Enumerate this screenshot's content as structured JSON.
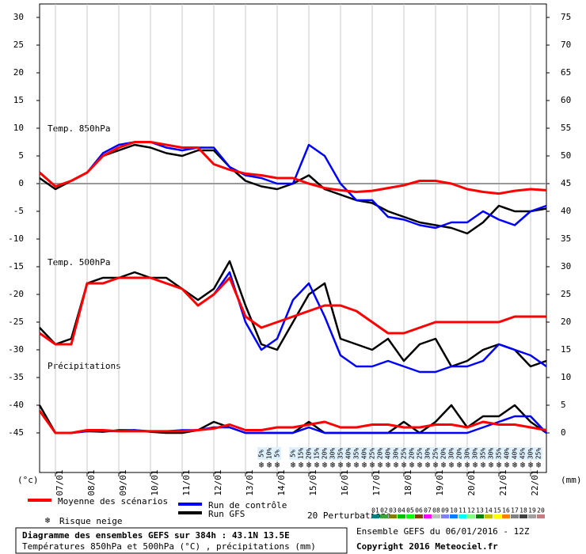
{
  "chart_data": {
    "type": "line",
    "title": "Diagramme des ensembles GEFS sur 384h : 43.1N 13.5E",
    "subtitle": "Températures 850hPa et 500hPa (°C) , précipitations (mm)",
    "run_info": "Ensemble GEFS du 06/01/2016 - 12Z",
    "copyright": "Copyright 2016 Meteociel.fr",
    "y_label": "(°c)",
    "y2_label": "(mm)",
    "panel_labels": [
      "Temp. 850hPa",
      "Temp. 500hPa",
      "Précipitations"
    ],
    "ylim": [
      -45,
      30
    ],
    "yticks": [
      30,
      25,
      20,
      15,
      10,
      5,
      0,
      -5,
      -10,
      -15,
      -20,
      -25,
      -30,
      -35,
      -40,
      -45
    ],
    "y2lim": [
      0,
      75
    ],
    "y2ticks": [
      75,
      70,
      65,
      60,
      55,
      50,
      45,
      40,
      35,
      30,
      25,
      20,
      15,
      10,
      5,
      0
    ],
    "xlim": [
      0,
      384
    ],
    "xticks": [
      {
        "value": 12,
        "label": "07/01"
      },
      {
        "value": 36,
        "label": "08/01"
      },
      {
        "value": 60,
        "label": "09/01"
      },
      {
        "value": 84,
        "label": "10/01"
      },
      {
        "value": 108,
        "label": "11/01"
      },
      {
        "value": 132,
        "label": "12/01"
      },
      {
        "value": 156,
        "label": "13/01"
      },
      {
        "value": 180,
        "label": "14/01"
      },
      {
        "value": 204,
        "label": "15/01"
      },
      {
        "value": 228,
        "label": "16/01"
      },
      {
        "value": 252,
        "label": "17/01"
      },
      {
        "value": 276,
        "label": "18/01"
      },
      {
        "value": 300,
        "label": "19/01"
      },
      {
        "value": 324,
        "label": "20/01"
      },
      {
        "value": 348,
        "label": "21/01"
      },
      {
        "value": 372,
        "label": "22/01"
      }
    ],
    "grid": true,
    "x": [
      0,
      12,
      24,
      36,
      48,
      60,
      72,
      84,
      96,
      108,
      120,
      132,
      144,
      156,
      168,
      180,
      192,
      204,
      216,
      228,
      240,
      252,
      264,
      276,
      288,
      300,
      312,
      324,
      336,
      348,
      360,
      372,
      384
    ],
    "series": [
      {
        "name": "Moyenne des scénarios",
        "color": "#ff0000",
        "t850": [
          2,
          -0.5,
          0.5,
          2,
          5,
          6.5,
          7.5,
          7.5,
          7,
          6.5,
          6.5,
          3.5,
          2.5,
          1.8,
          1.5,
          1,
          1,
          0,
          -0.8,
          -1.2,
          -1.5,
          -1.3,
          -0.8,
          -0.3,
          0.5,
          0.5,
          0,
          -1,
          -1.5,
          -1.8,
          -1.3,
          -1,
          -1.2
        ],
        "t500": [
          -27,
          -29,
          -29,
          -18,
          -18,
          -17,
          -17,
          -17,
          -18,
          -19,
          -22,
          -20,
          -17,
          -24,
          -26,
          -25,
          -24,
          -23,
          -22,
          -22,
          -23,
          -25,
          -27,
          -27,
          -26,
          -25,
          -25,
          -25,
          -25,
          -25,
          -24,
          -24,
          -24
        ],
        "precip": [
          4,
          0,
          0,
          0.5,
          0.5,
          0.3,
          0.3,
          0.3,
          0.3,
          0.3,
          0.5,
          0.8,
          1.5,
          0.5,
          0.5,
          1,
          1,
          1.5,
          2,
          1,
          1,
          1.5,
          1.5,
          1,
          1,
          1.5,
          1.5,
          1,
          2,
          1.5,
          1.5,
          1,
          0.5
        ]
      },
      {
        "name": "Run de contrôle",
        "color": "#0000ff",
        "t850": [
          2,
          -0.5,
          0.5,
          2,
          5.5,
          7,
          7.5,
          7.5,
          6.5,
          6,
          6.5,
          6.5,
          3,
          1.5,
          1,
          0,
          0,
          7,
          5,
          0,
          -3,
          -3,
          -6,
          -6.5,
          -7.5,
          -8,
          -7,
          -7,
          -5,
          -6.5,
          -7.5,
          -5,
          -4
        ],
        "t500": [
          -27,
          -29,
          -29,
          -18,
          -18,
          -17,
          -17,
          -17,
          -18,
          -19,
          -22,
          -20,
          -16,
          -25,
          -30,
          -28,
          -21,
          -18,
          -24,
          -31,
          -33,
          -33,
          -32,
          -33,
          -34,
          -34,
          -33,
          -33,
          -32,
          -29,
          -30,
          -31,
          -33
        ],
        "precip": [
          4,
          0,
          0,
          0.3,
          0.3,
          0.3,
          0.5,
          0.3,
          0.3,
          0.5,
          0.5,
          1,
          1,
          0,
          0,
          0,
          0,
          1,
          0,
          0,
          0,
          0,
          0,
          0,
          0,
          0,
          0,
          0,
          1,
          2,
          3,
          3,
          0
        ]
      },
      {
        "name": "Run GFS",
        "color": "#000000",
        "t850": [
          1,
          -1,
          0.5,
          2,
          5,
          6,
          7,
          6.5,
          5.5,
          5,
          6,
          6,
          3,
          0.5,
          -0.5,
          -1,
          0,
          1.5,
          -1,
          -2,
          -3,
          -3.5,
          -5,
          -6,
          -7,
          -7.5,
          -8,
          -9,
          -7,
          -4,
          -5,
          -5,
          -4.5
        ],
        "t500": [
          -26,
          -29,
          -28,
          -18,
          -17,
          -17,
          -16,
          -17,
          -17,
          -19,
          -21,
          -19,
          -14,
          -22,
          -29,
          -30,
          -25,
          -20,
          -18,
          -28,
          -29,
          -30,
          -28,
          -32,
          -29,
          -28,
          -33,
          -32,
          -30,
          -29,
          -30,
          -33,
          -32
        ],
        "precip": [
          5,
          0,
          0,
          0.3,
          0.2,
          0.5,
          0.5,
          0.2,
          0,
          0,
          0.5,
          2,
          1,
          0,
          0,
          0,
          0,
          2,
          0,
          0,
          0,
          0,
          0,
          2,
          0,
          2,
          5,
          1,
          3,
          3,
          5,
          2,
          0
        ]
      }
    ],
    "snow_risk": {
      "name": "Risque neige",
      "color": "#66bbee",
      "x": [
        168,
        174,
        180,
        192,
        198,
        204,
        210,
        216,
        222,
        228,
        234,
        240,
        246,
        252,
        258,
        264,
        270,
        276,
        282,
        288,
        294,
        300,
        306,
        312,
        318,
        324,
        330,
        336,
        342,
        348,
        354,
        360,
        366,
        372,
        378
      ],
      "values": [
        5,
        10,
        5,
        5,
        15,
        20,
        15,
        20,
        30,
        35,
        40,
        35,
        40,
        25,
        20,
        40,
        30,
        25,
        20,
        25,
        30,
        25,
        20,
        30,
        20,
        30,
        30,
        35,
        30,
        35,
        40,
        40,
        45,
        30,
        25
      ],
      "value_labels": [
        "5%",
        "10%",
        "5%",
        "5%",
        "15%",
        "20%",
        "15%",
        "20%",
        "30%",
        "35%",
        "40%",
        "35%",
        "40%",
        "25%",
        "20%",
        "40%",
        "30%",
        "25%",
        "20%",
        "25%",
        "30%",
        "25%",
        "20%",
        "30%",
        "20%",
        "30%",
        "30%",
        "35%",
        "30%",
        "35%",
        "40%",
        "40%",
        "45%",
        "30%",
        "25%"
      ]
    },
    "perturbations": {
      "label": "20 Perturbations",
      "names": [
        "01",
        "02",
        "03",
        "04",
        "05",
        "06",
        "07",
        "08",
        "09",
        "10",
        "11",
        "12",
        "13",
        "14",
        "15",
        "16",
        "17",
        "18",
        "19",
        "20"
      ],
      "colors": [
        "#008080",
        "#40a040",
        "#808000",
        "#00c000",
        "#00ff00",
        "#804000",
        "#ff00ff",
        "#c0c0c0",
        "#8080ff",
        "#0080ff",
        "#00ffff",
        "#80ff80",
        "#008000",
        "#c0c000",
        "#ffff00",
        "#ff8000",
        "#808080",
        "#404040",
        "#a0a0a0",
        "#c08080"
      ]
    }
  }
}
